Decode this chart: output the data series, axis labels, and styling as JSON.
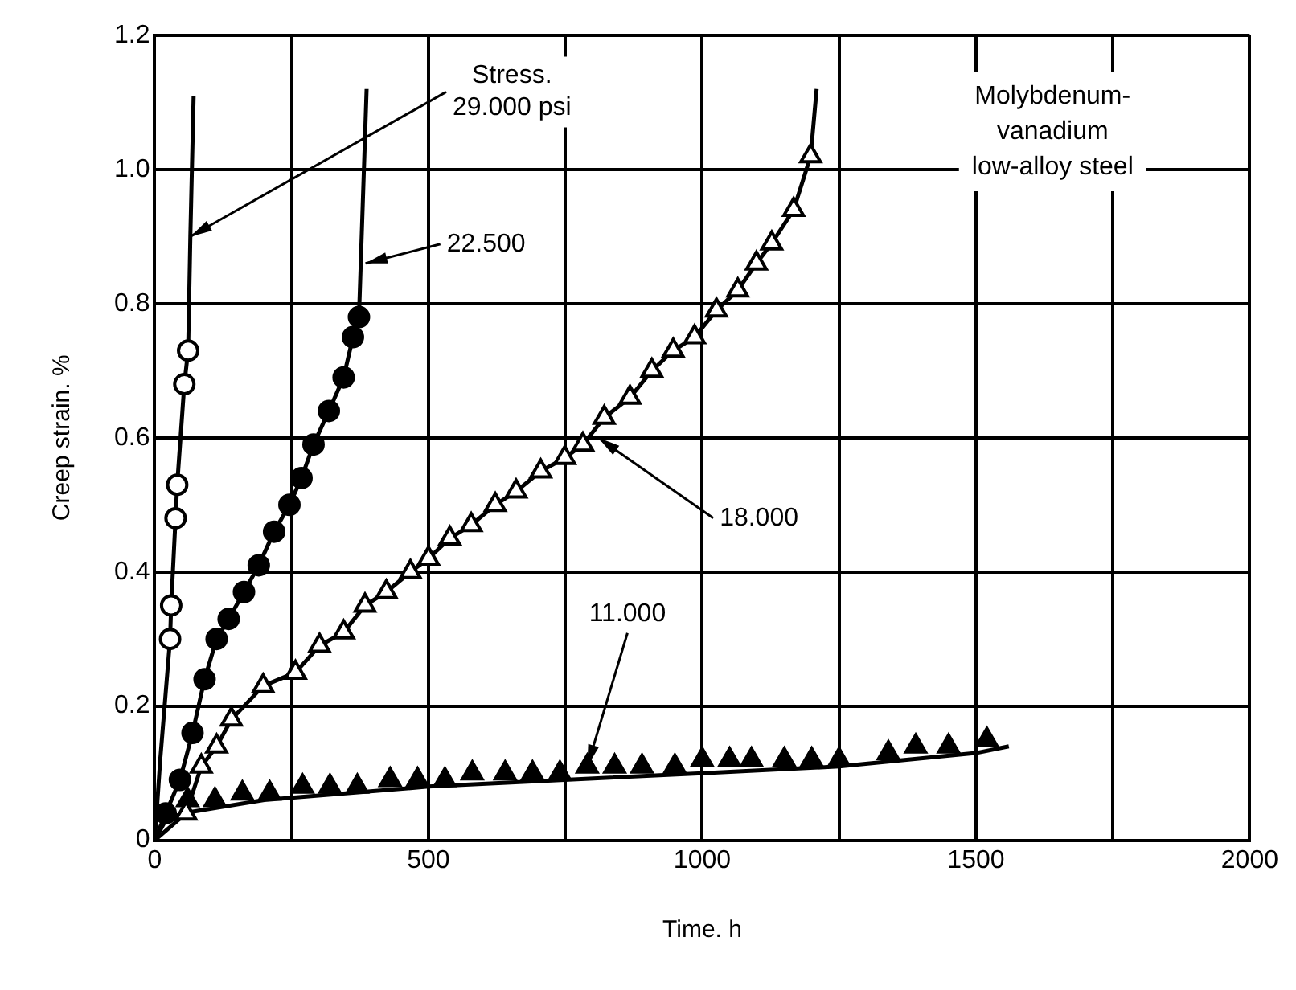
{
  "chart_data": {
    "type": "line",
    "xlabel": "Time. h",
    "ylabel": "Creep strain. %",
    "xlim": [
      0,
      2000
    ],
    "xticks": [
      0,
      {
        "value": 250,
        "label": null
      },
      500,
      {
        "value": 750,
        "label": null
      },
      1000,
      {
        "value": 1250,
        "label": null
      },
      1500,
      {
        "value": 1750,
        "label": null
      },
      2000
    ],
    "ylim": [
      0,
      1.2
    ],
    "yticks": [
      0,
      0.2,
      0.4,
      0.6,
      0.8,
      {
        "value": 1,
        "label": "1.0"
      },
      1.2
    ],
    "grid": true,
    "legend": false,
    "series": [
      {
        "type": "line",
        "color": "#000000",
        "marker": "none",
        "x": [
          0,
          10,
          20,
          28,
          30,
          38,
          41,
          54,
          61,
          65,
          71
        ],
        "values": [
          0,
          0.12,
          0.22,
          0.3,
          0.35,
          0.48,
          0.53,
          0.68,
          0.73,
          0.9,
          1.11
        ]
      },
      {
        "type": "scatter",
        "color": "#ffffff",
        "marker": "circle",
        "x": [
          28,
          30,
          38,
          41,
          54,
          61
        ],
        "values": [
          0.3,
          0.35,
          0.48,
          0.53,
          0.68,
          0.73
        ]
      },
      {
        "type": "line",
        "color": "#000000",
        "marker": "none",
        "x": [
          0,
          20,
          46,
          69,
          91,
          113,
          135,
          163,
          190,
          218,
          246,
          268,
          290,
          318,
          345,
          362,
          373,
          387
        ],
        "values": [
          0,
          0.04,
          0.09,
          0.16,
          0.24,
          0.3,
          0.33,
          0.37,
          0.41,
          0.46,
          0.5,
          0.54,
          0.59,
          0.64,
          0.69,
          0.75,
          0.78,
          1.12
        ]
      },
      {
        "type": "scatter",
        "color": "#000000",
        "marker": "circle",
        "x": [
          20,
          46,
          69,
          91,
          113,
          135,
          163,
          190,
          218,
          246,
          268,
          290,
          318,
          345,
          362,
          373
        ],
        "values": [
          0.04,
          0.09,
          0.16,
          0.24,
          0.3,
          0.33,
          0.37,
          0.41,
          0.46,
          0.5,
          0.54,
          0.59,
          0.64,
          0.69,
          0.75,
          0.78
        ]
      },
      {
        "type": "line",
        "color": "#000000",
        "marker": "none",
        "x": [
          0,
          57,
          85,
          113,
          140,
          198,
          257,
          301,
          345,
          384,
          423,
          467,
          500,
          539,
          578,
          622,
          660,
          705,
          749,
          782,
          821,
          868,
          908,
          947,
          986,
          1026,
          1065,
          1099,
          1127,
          1167,
          1198,
          1209
        ],
        "values": [
          0,
          0.04,
          0.11,
          0.14,
          0.18,
          0.23,
          0.25,
          0.29,
          0.31,
          0.35,
          0.37,
          0.4,
          0.42,
          0.45,
          0.47,
          0.5,
          0.52,
          0.55,
          0.57,
          0.59,
          0.63,
          0.66,
          0.7,
          0.73,
          0.75,
          0.79,
          0.82,
          0.86,
          0.89,
          0.94,
          1.02,
          1.12
        ]
      },
      {
        "type": "scatter",
        "color": "#ffffff",
        "marker": "triangle",
        "x": [
          57,
          85,
          113,
          140,
          198,
          257,
          301,
          345,
          384,
          423,
          467,
          500,
          539,
          578,
          622,
          660,
          705,
          749,
          782,
          821,
          868,
          908,
          947,
          986,
          1026,
          1065,
          1099,
          1127,
          1167,
          1198
        ],
        "values": [
          0.04,
          0.11,
          0.14,
          0.18,
          0.23,
          0.25,
          0.29,
          0.31,
          0.35,
          0.37,
          0.4,
          0.42,
          0.45,
          0.47,
          0.5,
          0.52,
          0.55,
          0.57,
          0.59,
          0.63,
          0.66,
          0.7,
          0.73,
          0.75,
          0.79,
          0.82,
          0.86,
          0.89,
          0.94,
          1.02
        ]
      },
      {
        "type": "line",
        "color": "#000000",
        "marker": "none",
        "x": [
          0,
          20,
          50,
          200,
          500,
          1000,
          1250,
          1500,
          1560
        ],
        "values": [
          0,
          0.03,
          0.04,
          0.06,
          0.08,
          0.1,
          0.11,
          0.13,
          0.14
        ]
      },
      {
        "type": "scatter",
        "color": "#000000",
        "marker": "triangle",
        "x": [
          60,
          110,
          160,
          210,
          270,
          320,
          370,
          430,
          480,
          530,
          580,
          640,
          690,
          740,
          790,
          840,
          890,
          950,
          1000,
          1050,
          1090,
          1150,
          1200,
          1250,
          1340,
          1390,
          1450,
          1520
        ],
        "values": [
          0.06,
          0.06,
          0.07,
          0.07,
          0.08,
          0.08,
          0.08,
          0.09,
          0.09,
          0.09,
          0.1,
          0.1,
          0.1,
          0.1,
          0.11,
          0.11,
          0.11,
          0.11,
          0.12,
          0.12,
          0.12,
          0.12,
          0.12,
          0.12,
          0.13,
          0.14,
          0.14,
          0.15
        ]
      }
    ],
    "annotations": [
      {
        "text": "Stress.\n29.000 psi",
        "x": 65,
        "y": 0.9
      },
      {
        "text": "22.500",
        "x": 385,
        "y": 0.86
      },
      {
        "text": "18.000",
        "x": 810,
        "y": 0.6
      },
      {
        "text": "11.000",
        "x": 790,
        "y": 0.11
      },
      "Molybdenum-\nvanadium\nlow-alloy steel"
    ]
  }
}
